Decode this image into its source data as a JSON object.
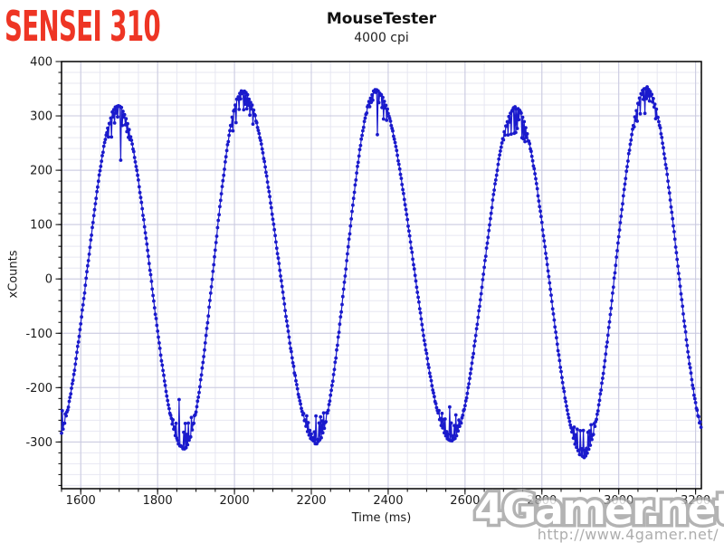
{
  "branding": {
    "device_label": "SENSEI 310",
    "device_label_color": "#ee3524",
    "watermark_logo": "4Gamer.net",
    "watermark_url": "http://www.4gamer.net/"
  },
  "chart_data": {
    "type": "line",
    "title": "MouseTester",
    "subtitle": "4000 cpi",
    "xlabel": "Time (ms)",
    "ylabel": "xCounts",
    "xlim": [
      1550,
      3215
    ],
    "ylim": [
      -386,
      400
    ],
    "x_major_ticks": [
      1600,
      1800,
      2000,
      2200,
      2400,
      2600,
      2800,
      3000,
      3200
    ],
    "x_minor_step": 50,
    "y_major_ticks": [
      400,
      300,
      200,
      100,
      0,
      -100,
      -200,
      -300
    ],
    "y_minor_step": 20,
    "grid": true,
    "legend": "none",
    "style": {
      "series_color": "#1a1acc",
      "grid_minor": "#e7e7f2",
      "grid_major": "#c9c9df",
      "axis_color": "#000000",
      "tick_label_color": "#1a1a1a"
    },
    "series": [
      {
        "name": "xCounts",
        "marker": "circle",
        "waveform": "sine-through-extrema",
        "sample_interval_ms": 2,
        "extrema": [
          [
            1535,
            -295
          ],
          [
            1697,
            318
          ],
          [
            1868,
            -312
          ],
          [
            2021,
            345
          ],
          [
            2213,
            -302
          ],
          [
            2368,
            347
          ],
          [
            2565,
            -297
          ],
          [
            2731,
            315
          ],
          [
            2908,
            -327
          ],
          [
            3072,
            352
          ],
          [
            3235,
            -300
          ]
        ],
        "jitter": {
          "threshold": 0.8,
          "max_inward": 55,
          "spike_chance": 0.1,
          "spike_scale": 2.0,
          "base_noise": 4
        }
      }
    ]
  }
}
